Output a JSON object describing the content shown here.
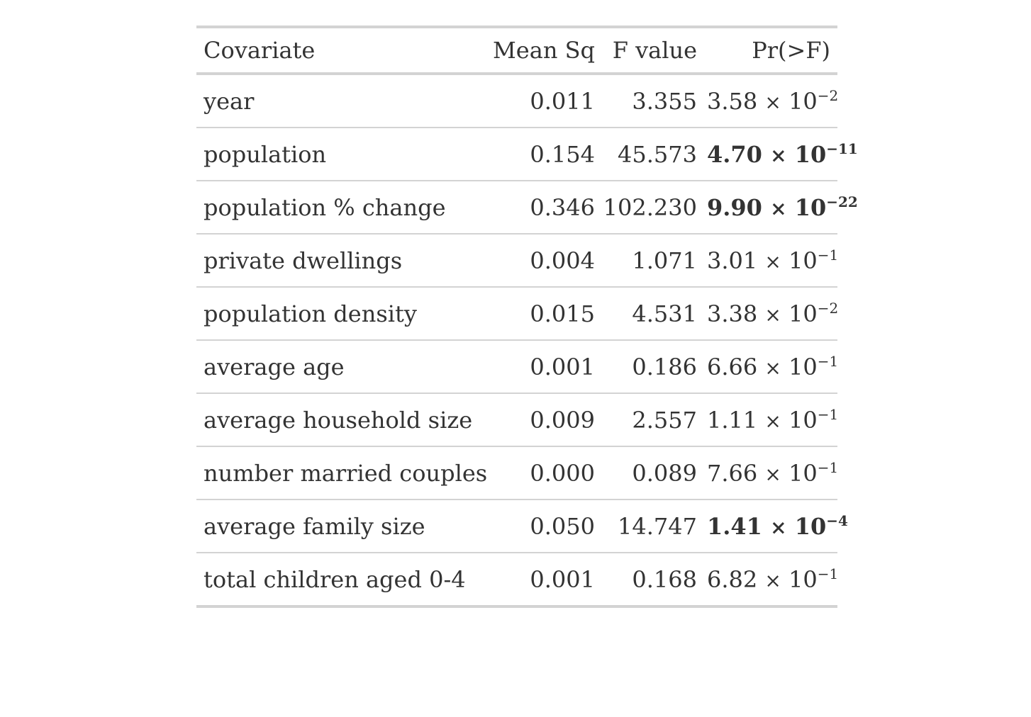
{
  "columns": [
    "Covariate",
    "Mean Sq",
    "F value",
    "Pr(>F)"
  ],
  "rows": [
    {
      "covariate": "year",
      "mean_sq": "0.011",
      "f_value": "3.355",
      "p_mant": "3.58",
      "p_exp": "−2",
      "significant": false
    },
    {
      "covariate": "population",
      "mean_sq": "0.154",
      "f_value": "45.573",
      "p_mant": "4.70",
      "p_exp": "−11",
      "significant": true
    },
    {
      "covariate": "population % change",
      "mean_sq": "0.346",
      "f_value": "102.230",
      "p_mant": "9.90",
      "p_exp": "−22",
      "significant": true
    },
    {
      "covariate": "private dwellings",
      "mean_sq": "0.004",
      "f_value": "1.071",
      "p_mant": "3.01",
      "p_exp": "−1",
      "significant": false
    },
    {
      "covariate": "population density",
      "mean_sq": "0.015",
      "f_value": "4.531",
      "p_mant": "3.38",
      "p_exp": "−2",
      "significant": false
    },
    {
      "covariate": "average age",
      "mean_sq": "0.001",
      "f_value": "0.186",
      "p_mant": "6.66",
      "p_exp": "−1",
      "significant": false
    },
    {
      "covariate": "average household size",
      "mean_sq": "0.009",
      "f_value": "2.557",
      "p_mant": "1.11",
      "p_exp": "−1",
      "significant": false
    },
    {
      "covariate": "number married couples",
      "mean_sq": "0.000",
      "f_value": "0.089",
      "p_mant": "7.66",
      "p_exp": "−1",
      "significant": false
    },
    {
      "covariate": "average family size",
      "mean_sq": "0.050",
      "f_value": "14.747",
      "p_mant": "1.41",
      "p_exp": "−4",
      "significant": true
    },
    {
      "covariate": "total children aged 0-4",
      "mean_sq": "0.001",
      "f_value": "0.168",
      "p_mant": "6.82",
      "p_exp": "−1",
      "significant": false
    }
  ],
  "p_base": "10",
  "p_times": "×",
  "colors": {
    "text": "#333333",
    "rule": "#d3d3d3"
  }
}
